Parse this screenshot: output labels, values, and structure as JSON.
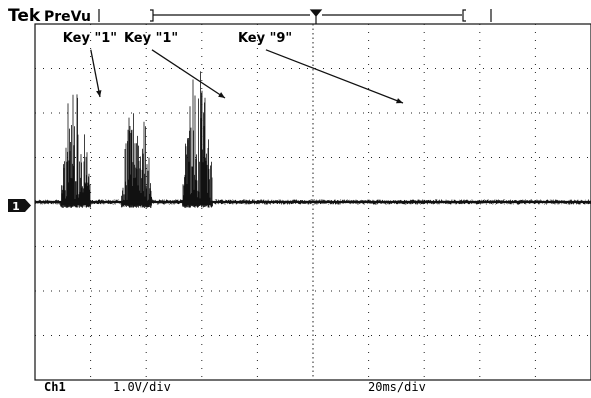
{
  "header": {
    "brand": "Tek",
    "mode": "PreVu"
  },
  "channel_marker": "1",
  "footer": {
    "channel": "Ch1",
    "volts_per_div": "1.0V/div",
    "time_per_div": "20ms/div"
  },
  "chart_data": {
    "type": "line",
    "title": "",
    "xlabel": "",
    "ylabel": "",
    "x_units": "ms",
    "y_units": "V",
    "xlim": [
      0,
      200
    ],
    "ylim": [
      -4,
      4
    ],
    "grid": true,
    "x_divisions": 10,
    "y_divisions": 8,
    "baseline_v": 0,
    "bursts": [
      {
        "start_ms": 9,
        "end_ms": 20,
        "peak_v": 2.9
      },
      {
        "start_ms": 31,
        "end_ms": 42,
        "peak_v": 2.9
      },
      {
        "start_ms": 53,
        "end_ms": 64,
        "peak_v": 4.0
      }
    ],
    "annotations": [
      {
        "text": "Key \"1\"",
        "x_ms": 10,
        "y_v": 3.6
      },
      {
        "text": "Key \"1\"",
        "x_ms": 32,
        "y_v": 3.6
      },
      {
        "text": "Key \"9\"",
        "x_ms": 73,
        "y_v": 3.6
      }
    ]
  }
}
